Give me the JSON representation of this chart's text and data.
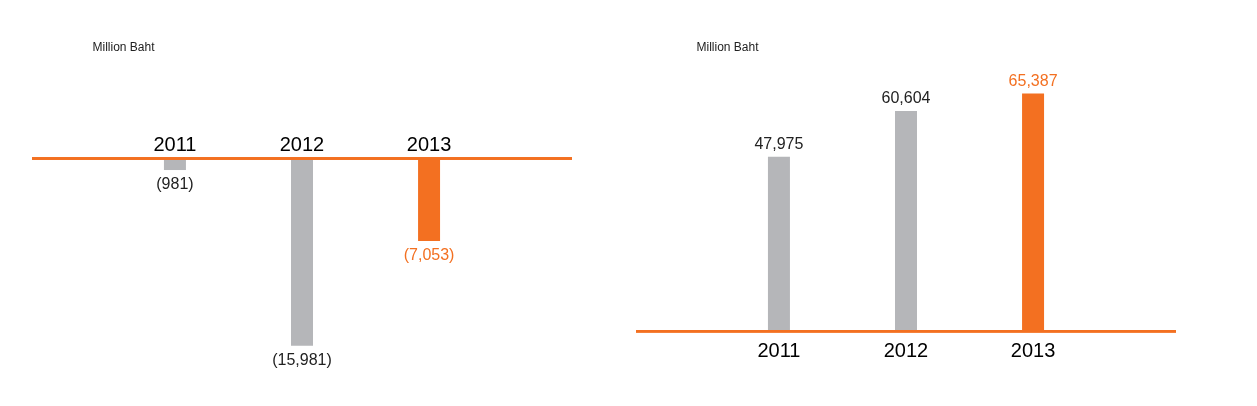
{
  "chart_data": [
    {
      "type": "bar",
      "ylabel": "Million Baht",
      "categories": [
        "2011",
        "2012",
        "2013"
      ],
      "values": [
        -981,
        -15981,
        -7053
      ],
      "colors": [
        "#b5b6b9",
        "#b5b6b9",
        "#f37021"
      ],
      "value_labels": [
        "(981)",
        "(15,981)",
        "(7,053)"
      ],
      "grid": false
    },
    {
      "type": "bar",
      "ylabel": "Million Baht",
      "categories": [
        "2011",
        "2012",
        "2013"
      ],
      "values": [
        47975,
        60604,
        65387
      ],
      "colors": [
        "#b5b6b9",
        "#b5b6b9",
        "#f37021"
      ],
      "value_labels": [
        "47,975",
        "60,604",
        "65,387"
      ],
      "grid": false
    }
  ]
}
